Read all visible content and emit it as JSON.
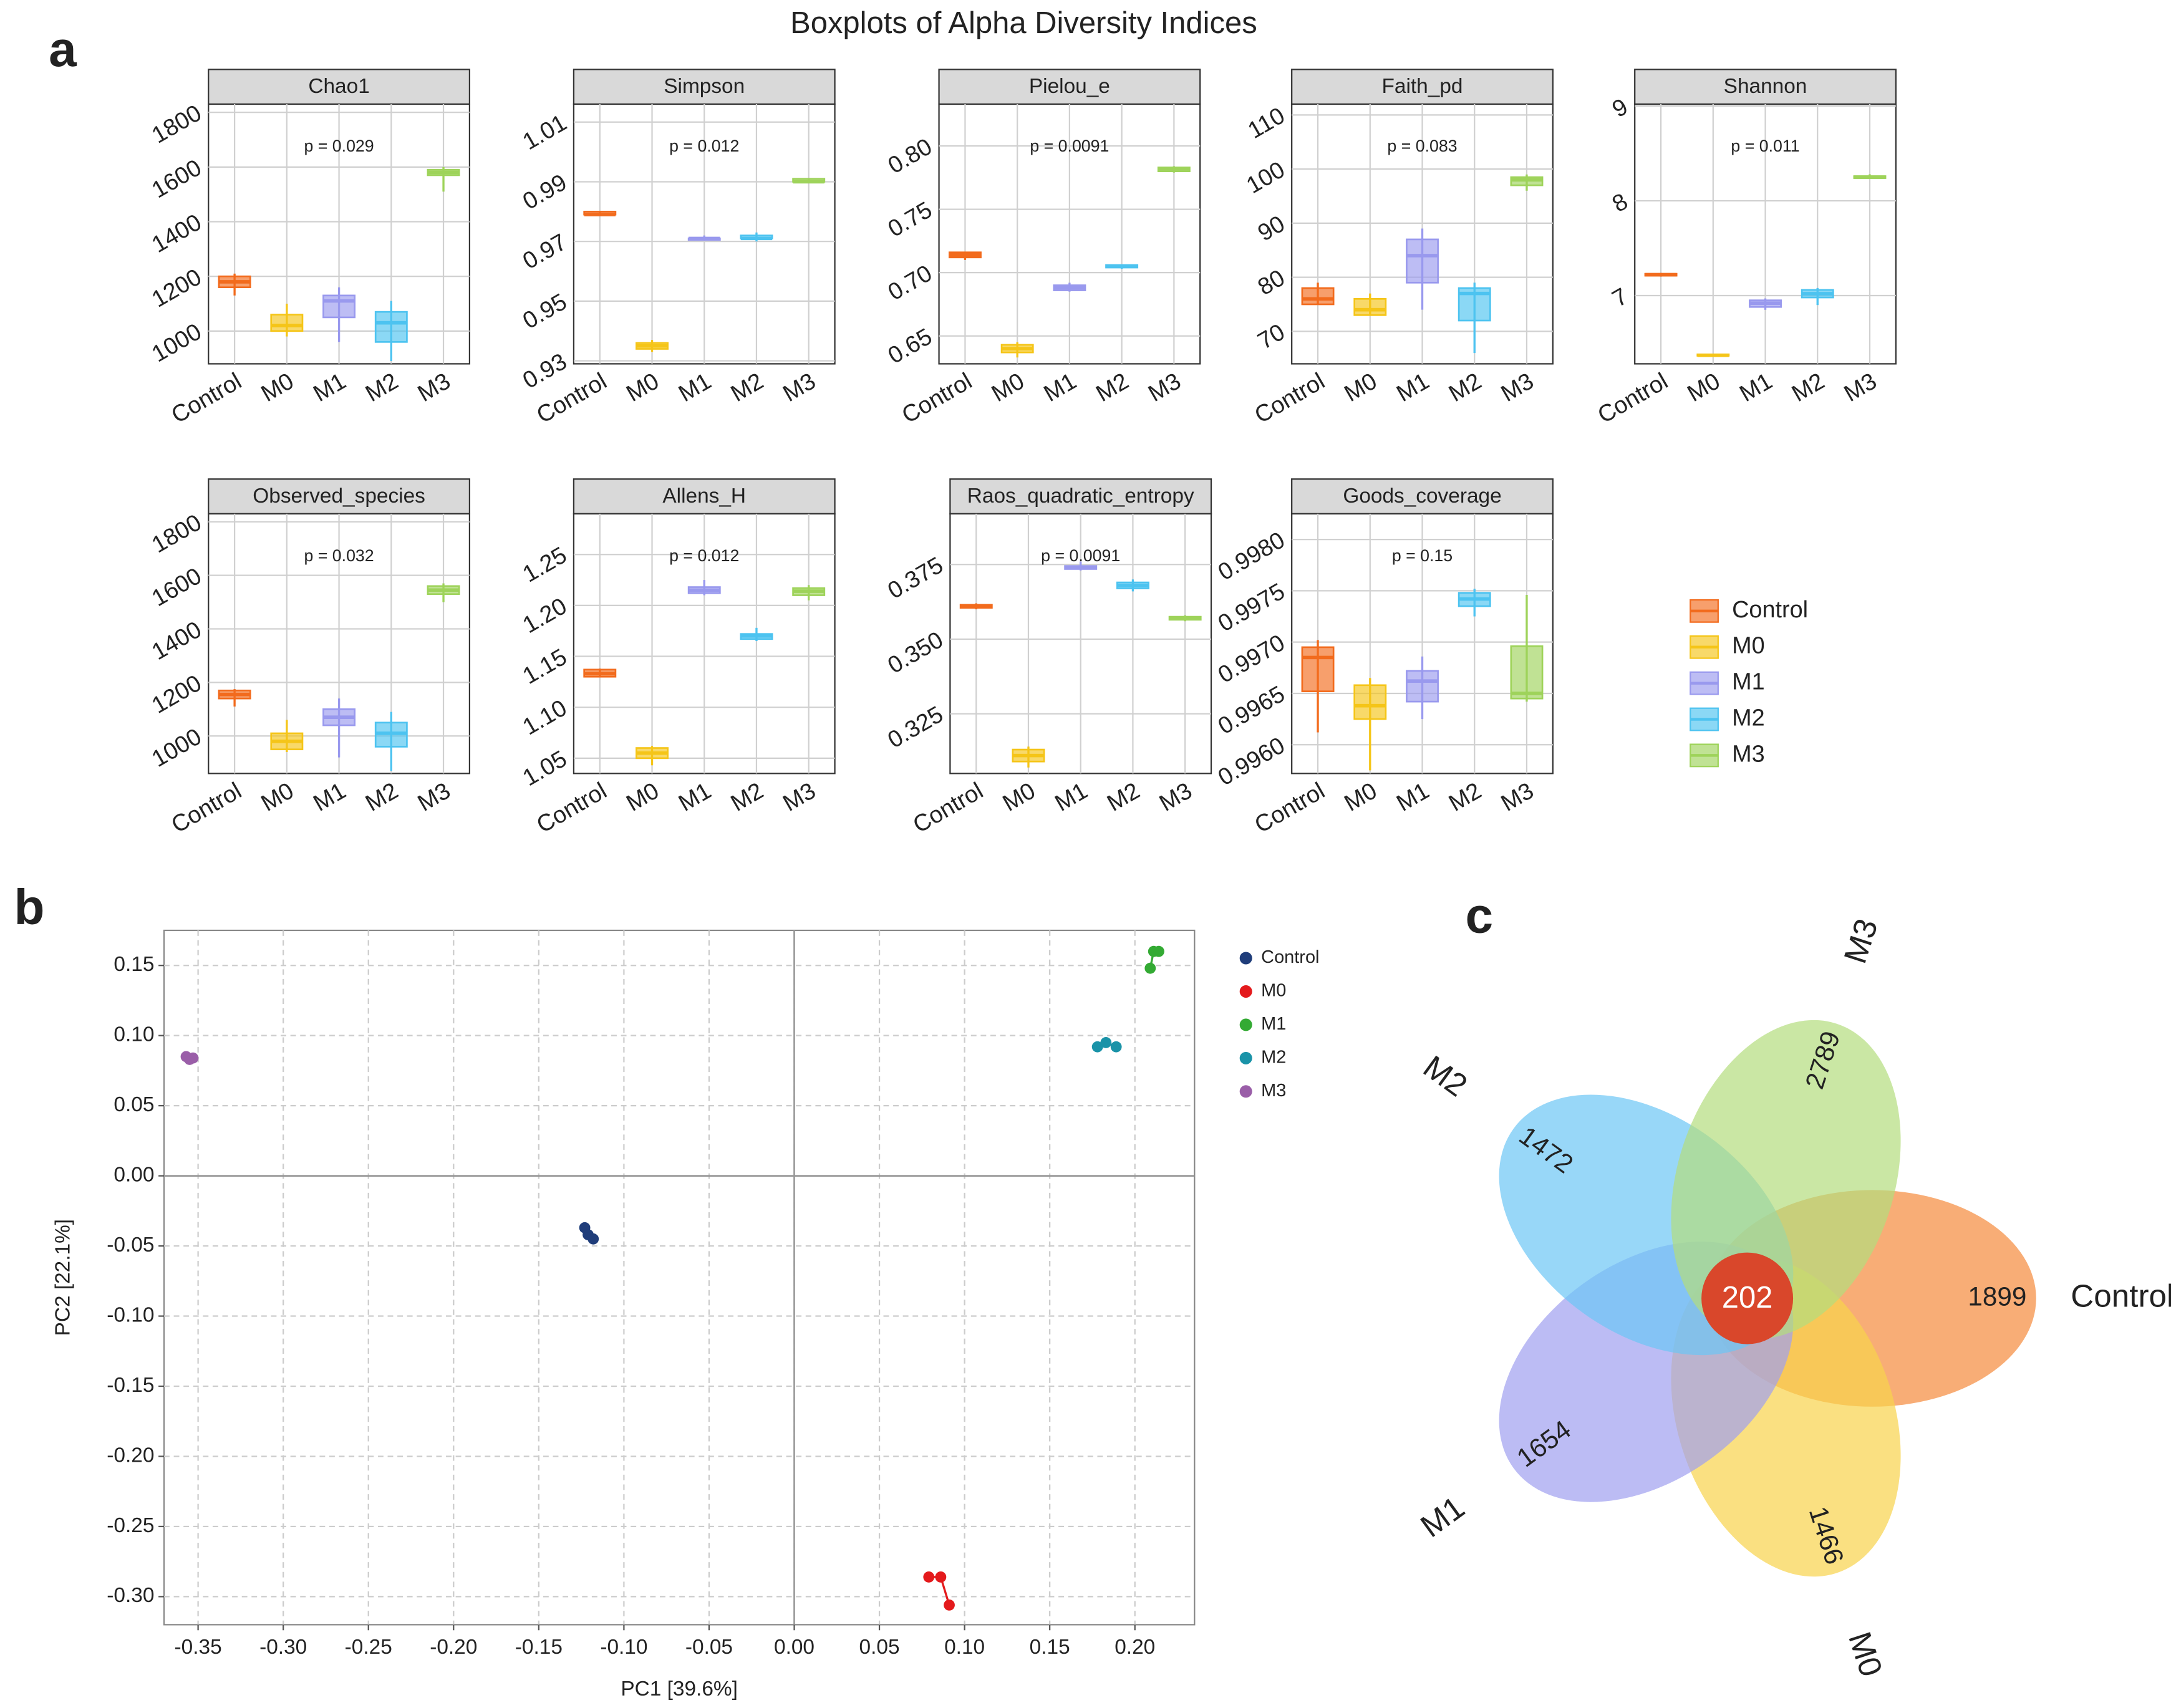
{
  "figure_title": "Boxplots of Alpha Diversity Indices",
  "panel_labels": [
    "a",
    "b",
    "c"
  ],
  "chart_data": [
    {
      "type": "box",
      "title": "Chao1",
      "annotation": "p = 0.029",
      "categories": [
        "Control",
        "M0",
        "M1",
        "M2",
        "M3"
      ],
      "colors": [
        "#f26b1d",
        "#f5c518",
        "#9999ee",
        "#4dc3f0",
        "#9ed35a"
      ],
      "values": [
        [
          1130,
          1160,
          1180,
          1200,
          1210
        ],
        [
          980,
          1000,
          1020,
          1060,
          1100
        ],
        [
          960,
          1050,
          1110,
          1130,
          1160
        ],
        [
          890,
          960,
          1030,
          1070,
          1110
        ],
        [
          1510,
          1570,
          1580,
          1590,
          1600
        ]
      ],
      "ylim": [
        880,
        1830
      ],
      "yticks": [
        1000,
        1200,
        1400,
        1600,
        1800
      ]
    },
    {
      "type": "box",
      "title": "Simpson",
      "annotation": "p = 0.012",
      "categories": [
        "Control",
        "M0",
        "M1",
        "M2",
        "M3"
      ],
      "colors": [
        "#f26b1d",
        "#f5c518",
        "#9999ee",
        "#4dc3f0",
        "#9ed35a"
      ],
      "values": [
        [
          0.979,
          0.979,
          0.979,
          0.98,
          0.98
        ],
        [
          0.933,
          0.934,
          0.935,
          0.936,
          0.937
        ],
        [
          0.971,
          0.971,
          0.971,
          0.971,
          0.972
        ],
        [
          0.97,
          0.971,
          0.971,
          0.972,
          0.973
        ],
        [
          0.99,
          0.99,
          0.99,
          0.991,
          0.991
        ]
      ],
      "ylim": [
        0.929,
        1.016
      ],
      "yticks": [
        0.93,
        0.95,
        0.97,
        0.99,
        1.01
      ]
    },
    {
      "type": "box",
      "title": "Pielou_e",
      "annotation": "p = 0.0091",
      "categories": [
        "Control",
        "M0",
        "M1",
        "M2",
        "M3"
      ],
      "colors": [
        "#f26b1d",
        "#f5c518",
        "#9999ee",
        "#4dc3f0",
        "#9ed35a"
      ],
      "values": [
        [
          0.71,
          0.712,
          0.714,
          0.716,
          0.716
        ],
        [
          0.633,
          0.637,
          0.64,
          0.643,
          0.645
        ],
        [
          0.685,
          0.686,
          0.688,
          0.69,
          0.692
        ],
        [
          0.703,
          0.704,
          0.705,
          0.706,
          0.706
        ],
        [
          0.779,
          0.78,
          0.782,
          0.783,
          0.784
        ]
      ],
      "ylim": [
        0.628,
        0.833
      ],
      "yticks": [
        0.65,
        {
          "value": 0.7,
          "label": "0.70"
        },
        0.75,
        {
          "value": 0.8,
          "label": "0.80"
        }
      ]
    },
    {
      "type": "box",
      "title": "Faith_pd",
      "annotation": "p = 0.083",
      "categories": [
        "Control",
        "M0",
        "M1",
        "M2",
        "M3"
      ],
      "colors": [
        "#f26b1d",
        "#f5c518",
        "#9999ee",
        "#4dc3f0",
        "#9ed35a"
      ],
      "values": [
        [
          75,
          75,
          76,
          78,
          79
        ],
        [
          73,
          73,
          74,
          76,
          77
        ],
        [
          74,
          79,
          84,
          87,
          89
        ],
        [
          66,
          72,
          77,
          78,
          79
        ],
        [
          96,
          97,
          98,
          98.5,
          99
        ]
      ],
      "ylim": [
        64,
        112
      ],
      "yticks": [
        70,
        80,
        90,
        100,
        110
      ]
    },
    {
      "type": "box",
      "title": "Shannon",
      "annotation": "p = 0.011",
      "categories": [
        "Control",
        "M0",
        "M1",
        "M2",
        "M3"
      ],
      "colors": [
        "#f26b1d",
        "#f5c518",
        "#9999ee",
        "#4dc3f0",
        "#9ed35a"
      ],
      "values": [
        [
          7.2,
          7.21,
          7.22,
          7.23,
          7.24
        ],
        [
          6.36,
          6.37,
          6.37,
          6.38,
          6.38
        ],
        [
          6.85,
          6.88,
          6.92,
          6.95,
          6.97
        ],
        [
          6.9,
          6.98,
          7.02,
          7.06,
          7.08
        ],
        [
          8.23,
          8.24,
          8.25,
          8.26,
          8.28
        ]
      ],
      "ylim": [
        6.28,
        9.02
      ],
      "yticks": [
        7,
        8,
        9
      ]
    },
    {
      "type": "box",
      "title": "Observed_species",
      "annotation": "p = 0.032",
      "categories": [
        "Control",
        "M0",
        "M1",
        "M2",
        "M3"
      ],
      "colors": [
        "#f26b1d",
        "#f5c518",
        "#9999ee",
        "#4dc3f0",
        "#9ed35a"
      ],
      "values": [
        [
          1110,
          1140,
          1155,
          1170,
          1175
        ],
        [
          940,
          950,
          980,
          1010,
          1060
        ],
        [
          920,
          1040,
          1070,
          1100,
          1140
        ],
        [
          870,
          960,
          1010,
          1050,
          1090
        ],
        [
          1500,
          1530,
          1545,
          1560,
          1570
        ]
      ],
      "ylim": [
        860,
        1830
      ],
      "yticks": [
        1000,
        1200,
        1400,
        1600,
        1800
      ]
    },
    {
      "type": "box",
      "title": "Allens_H",
      "annotation": "p = 0.012",
      "categories": [
        "Control",
        "M0",
        "M1",
        "M2",
        "M3"
      ],
      "colors": [
        "#f26b1d",
        "#f5c518",
        "#9999ee",
        "#4dc3f0",
        "#9ed35a"
      ],
      "values": [
        [
          1.13,
          1.13,
          1.133,
          1.137,
          1.138
        ],
        [
          1.043,
          1.05,
          1.055,
          1.06,
          1.062
        ],
        [
          1.21,
          1.212,
          1.215,
          1.218,
          1.225
        ],
        [
          1.165,
          1.167,
          1.17,
          1.172,
          1.178
        ],
        [
          1.205,
          1.21,
          1.214,
          1.217,
          1.22
        ]
      ],
      "ylim": [
        1.035,
        1.29
      ],
      "yticks": [
        1.05,
        {
          "value": 1.1,
          "label": "1.10"
        },
        1.15,
        {
          "value": 1.2,
          "label": "1.20"
        },
        1.25
      ]
    },
    {
      "type": "box",
      "title": "Raos_quadratic_entropy",
      "annotation": "p = 0.0091",
      "categories": [
        "Control",
        "M0",
        "M1",
        "M2",
        "M3"
      ],
      "colors": [
        "#f26b1d",
        "#f5c518",
        "#9999ee",
        "#4dc3f0",
        "#9ed35a"
      ],
      "values": [
        [
          0.36,
          0.3605,
          0.361,
          0.3615,
          0.362
        ],
        [
          0.307,
          0.309,
          0.311,
          0.313,
          0.314
        ],
        [
          0.373,
          0.3735,
          0.374,
          0.3745,
          0.376
        ],
        [
          0.366,
          0.367,
          0.368,
          0.369,
          0.37
        ],
        [
          0.356,
          0.3565,
          0.357,
          0.3575,
          0.358
        ]
      ],
      "ylim": [
        0.305,
        0.392
      ],
      "yticks": [
        0.325,
        {
          "value": 0.35,
          "label": "0.350"
        },
        0.375
      ]
    },
    {
      "type": "box",
      "title": "Goods_coverage",
      "annotation": "p = 0.15",
      "categories": [
        "Control",
        "M0",
        "M1",
        "M2",
        "M3"
      ],
      "colors": [
        "#f26b1d",
        "#f5c518",
        "#9999ee",
        "#4dc3f0",
        "#9ed35a"
      ],
      "values": [
        [
          0.99612,
          0.99652,
          0.99685,
          0.99695,
          0.99702
        ],
        [
          0.99575,
          0.99625,
          0.99638,
          0.99658,
          0.99665
        ],
        [
          0.99625,
          0.99642,
          0.99662,
          0.99672,
          0.99686
        ],
        [
          0.99725,
          0.99735,
          0.99742,
          0.99748,
          0.99752
        ],
        [
          0.99642,
          0.99645,
          0.9965,
          0.99696,
          0.99746
        ]
      ],
      "ylim": [
        0.99572,
        0.99825
      ],
      "yticks": [
        {
          "value": 0.996,
          "label": "0.9960"
        },
        0.9965,
        {
          "value": 0.997,
          "label": "0.9970"
        },
        0.9975,
        {
          "value": 0.998,
          "label": "0.9980"
        }
      ]
    },
    {
      "type": "scatter",
      "xlabel": "PC1 [39.6%]",
      "ylabel": "PC2 [22.1%]",
      "xlim": [
        -0.37,
        0.235
      ],
      "xticks": [
        -0.35,
        {
          "value": -0.3,
          "label": "-0.30"
        },
        -0.25,
        {
          "value": -0.2,
          "label": "-0.20"
        },
        -0.15,
        {
          "value": -0.1,
          "label": "-0.10"
        },
        -0.05,
        {
          "value": 0,
          "label": "0.00"
        },
        0.05,
        {
          "value": 0.1,
          "label": "0.10"
        },
        0.15,
        {
          "value": 0.2,
          "label": "0.20"
        }
      ],
      "ylim": [
        -0.32,
        0.175
      ],
      "yticks": [
        0.15,
        {
          "value": 0.1,
          "label": "0.10"
        },
        0.05,
        {
          "value": 0,
          "label": "0.00"
        },
        -0.05,
        {
          "value": -0.1,
          "label": "-0.10"
        },
        -0.15,
        {
          "value": -0.2,
          "label": "-0.20"
        },
        -0.25,
        {
          "value": -0.3,
          "label": "-0.30"
        }
      ],
      "grid": true,
      "series": [
        {
          "name": "Control",
          "color": "#1f3d7a",
          "x": [
            -0.123,
            -0.121,
            -0.118
          ],
          "values": [
            -0.037,
            -0.042,
            -0.045
          ]
        },
        {
          "name": "M0",
          "color": "#e41a1c",
          "x": [
            0.079,
            0.086,
            0.091
          ],
          "values": [
            -0.286,
            -0.286,
            -0.306
          ]
        },
        {
          "name": "M1",
          "color": "#33aa33",
          "x": [
            0.209,
            0.211,
            0.214
          ],
          "values": [
            0.148,
            0.16,
            0.16
          ]
        },
        {
          "name": "M2",
          "color": "#1a93a8",
          "x": [
            0.178,
            0.183,
            0.189
          ],
          "values": [
            0.092,
            0.095,
            0.092
          ]
        },
        {
          "name": "M3",
          "color": "#9a5ea8",
          "x": [
            -0.357,
            -0.355,
            -0.353
          ],
          "values": [
            0.085,
            0.083,
            0.084
          ]
        }
      ]
    },
    {
      "type": "venn",
      "categories": [
        "Control",
        "M0",
        "M1",
        "M2",
        "M3"
      ],
      "values": [
        1899,
        1466,
        1654,
        1472,
        2789
      ],
      "colors": [
        "#f58a3c",
        "#f8d34c",
        "#9fa0f0",
        "#6cc6f5",
        "#b4dd7e"
      ],
      "center_value": 202,
      "center_color": "#d9472b"
    }
  ]
}
